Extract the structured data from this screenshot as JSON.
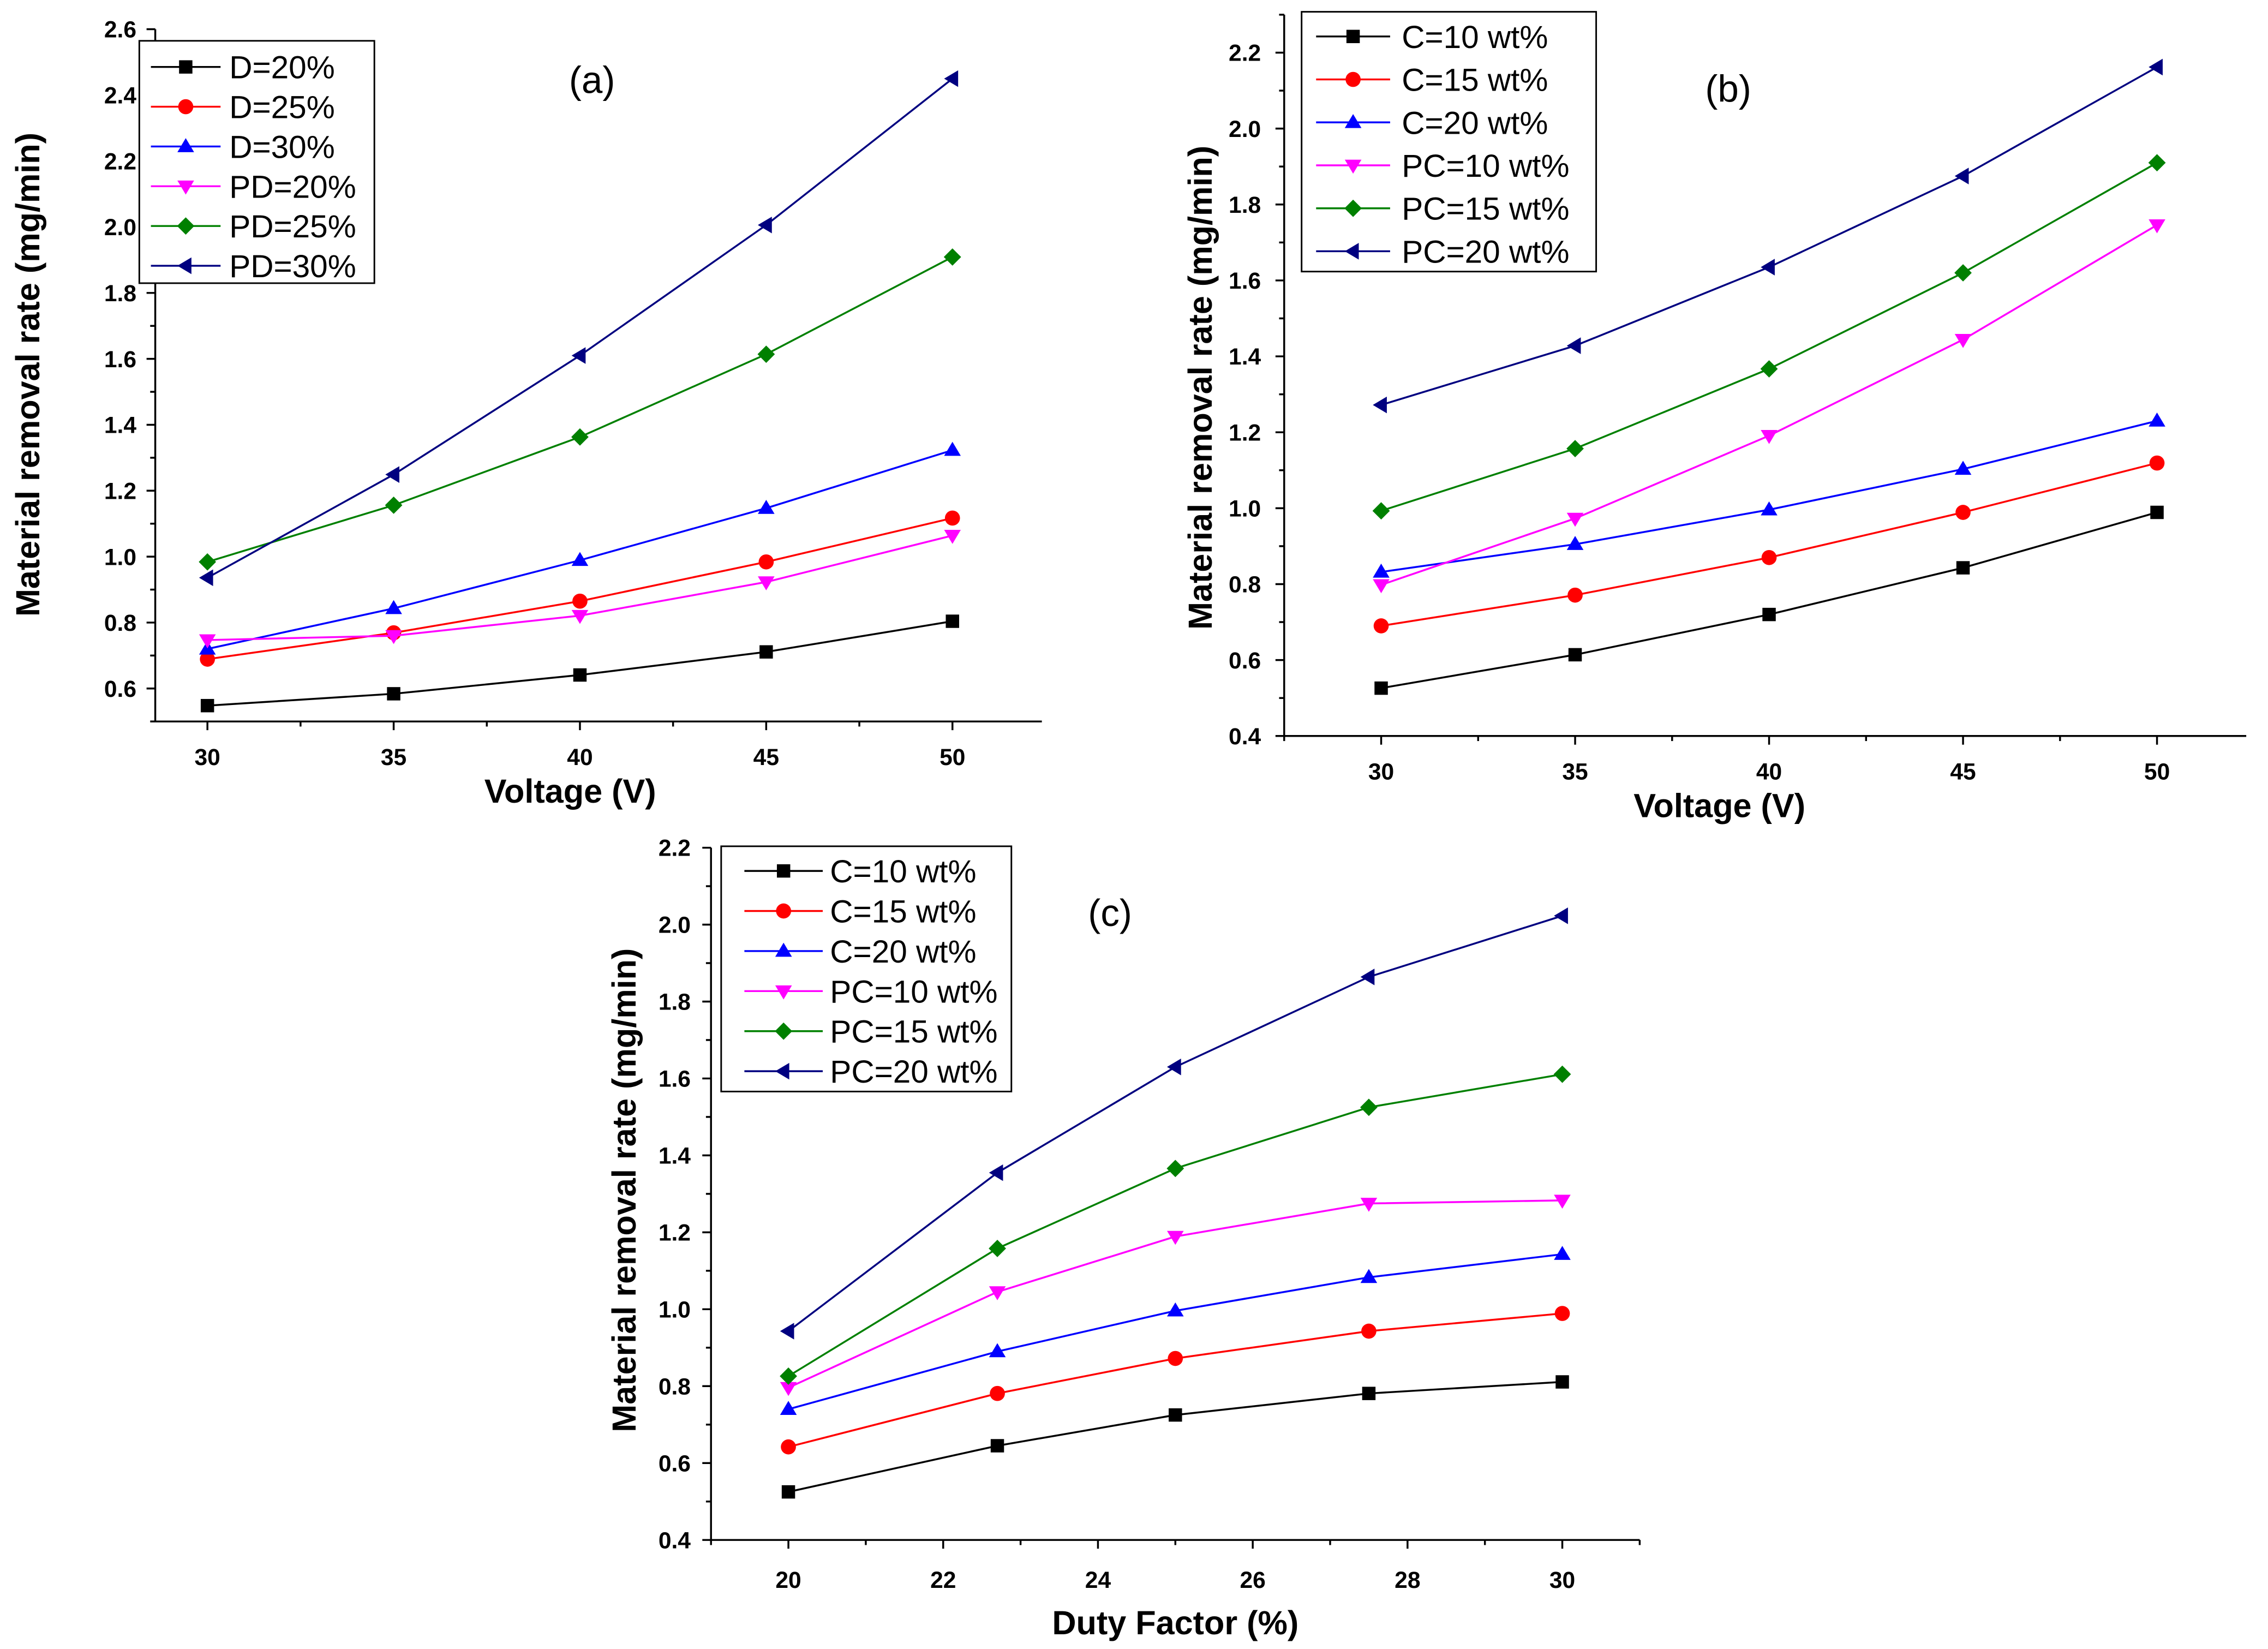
{
  "chart_data": [
    {
      "type": "line",
      "label": "(a)",
      "xlabel": "Voltage (V)",
      "ylabel": "Material removal rate (mg/min)",
      "xlim": [
        28.6,
        52.4
      ],
      "ylim": [
        0.5,
        2.6
      ],
      "xticks": [
        "30",
        "35",
        "40",
        "45",
        "50"
      ],
      "yticks": [
        "0.6",
        "0.8",
        "1.0",
        "1.2",
        "1.4",
        "1.6",
        "1.8",
        "2.0",
        "2.2",
        "2.4",
        "2.6"
      ],
      "grid": false,
      "legend": "top-left",
      "x": [
        30,
        35,
        40,
        45,
        50
      ],
      "series": [
        {
          "name": "D=20%",
          "color": "#000000",
          "marker": "square",
          "values": [
            0.548,
            0.584,
            0.641,
            0.711,
            0.804
          ]
        },
        {
          "name": "D=25%",
          "color": "#ff0000",
          "marker": "circle",
          "values": [
            0.689,
            0.769,
            0.865,
            0.984,
            1.117
          ]
        },
        {
          "name": "D=30%",
          "color": "#0000ff",
          "marker": "triangle-up",
          "values": [
            0.72,
            0.843,
            0.989,
            1.147,
            1.323
          ]
        },
        {
          "name": "PD=20%",
          "color": "#ff00ff",
          "marker": "triangle-down",
          "values": [
            0.747,
            0.76,
            0.821,
            0.923,
            1.064
          ]
        },
        {
          "name": "PD=25%",
          "color": "#008000",
          "marker": "diamond",
          "values": [
            0.984,
            1.156,
            1.363,
            1.614,
            1.909
          ]
        },
        {
          "name": "PD=30%",
          "color": "#000080",
          "marker": "triangle-left",
          "values": [
            0.936,
            1.249,
            1.61,
            2.006,
            2.45
          ]
        }
      ]
    },
    {
      "type": "line",
      "label": "(b)",
      "xlabel": "Voltage (V)",
      "ylabel": "Material removal rate (mg/min)",
      "xlim": [
        27.5,
        52.3
      ],
      "ylim": [
        0.4,
        2.3
      ],
      "xticks": [
        "30",
        "35",
        "40",
        "45",
        "50"
      ],
      "yticks": [
        "0.4",
        "0.6",
        "0.8",
        "1.0",
        "1.2",
        "1.4",
        "1.6",
        "1.8",
        "2.0",
        "2.2"
      ],
      "grid": false,
      "legend": "top-left",
      "x": [
        30,
        35,
        40,
        45,
        50
      ],
      "series": [
        {
          "name": "C=10 wt%",
          "color": "#000000",
          "marker": "square",
          "values": [
            0.526,
            0.614,
            0.72,
            0.843,
            0.989
          ]
        },
        {
          "name": "C=15 wt%",
          "color": "#ff0000",
          "marker": "circle",
          "values": [
            0.69,
            0.771,
            0.87,
            0.989,
            1.119
          ]
        },
        {
          "name": "C=20 wt%",
          "color": "#0000ff",
          "marker": "triangle-up",
          "values": [
            0.832,
            0.905,
            0.996,
            1.103,
            1.23
          ]
        },
        {
          "name": "PC=10 wt%",
          "color": "#ff00ff",
          "marker": "triangle-down",
          "values": [
            0.798,
            0.973,
            1.191,
            1.444,
            1.746
          ]
        },
        {
          "name": "PC=15 wt%",
          "color": "#008000",
          "marker": "diamond",
          "values": [
            0.993,
            1.157,
            1.367,
            1.62,
            1.91
          ]
        },
        {
          "name": "PC=20 wt%",
          "color": "#000080",
          "marker": "triangle-left",
          "values": [
            1.272,
            1.428,
            1.635,
            1.875,
            2.162
          ]
        }
      ]
    },
    {
      "type": "line",
      "label": "(c)",
      "xlabel": "Duty Factor (%)",
      "ylabel": "Material removal rate (mg/min)",
      "xlim": [
        19,
        31
      ],
      "ylim": [
        0.4,
        2.2
      ],
      "xticks": [
        "20",
        "22",
        "24",
        "26",
        "28",
        "30"
      ],
      "yticks": [
        "0.4",
        "0.6",
        "0.8",
        "1.0",
        "1.2",
        "1.4",
        "1.6",
        "1.8",
        "2.0",
        "2.2"
      ],
      "grid": false,
      "legend": "top-left",
      "x": [
        20,
        22.7,
        25,
        27.5,
        30
      ],
      "series": [
        {
          "name": "C=10 wt%",
          "color": "#000000",
          "marker": "square",
          "values": [
            0.525,
            0.645,
            0.725,
            0.781,
            0.811
          ]
        },
        {
          "name": "C=15 wt%",
          "color": "#ff0000",
          "marker": "circle",
          "values": [
            0.642,
            0.781,
            0.872,
            0.943,
            0.989
          ]
        },
        {
          "name": "C=20 wt%",
          "color": "#0000ff",
          "marker": "triangle-up",
          "values": [
            0.74,
            0.89,
            0.996,
            1.083,
            1.143
          ]
        },
        {
          "name": "PC=10 wt%",
          "color": "#ff00ff",
          "marker": "triangle-down",
          "values": [
            0.796,
            1.045,
            1.189,
            1.275,
            1.283
          ]
        },
        {
          "name": "PC=15 wt%",
          "color": "#008000",
          "marker": "diamond",
          "values": [
            0.826,
            1.158,
            1.366,
            1.525,
            1.611
          ]
        },
        {
          "name": "PC=20 wt%",
          "color": "#000080",
          "marker": "triangle-left",
          "values": [
            0.943,
            1.355,
            1.63,
            1.864,
            2.023
          ]
        }
      ]
    }
  ]
}
